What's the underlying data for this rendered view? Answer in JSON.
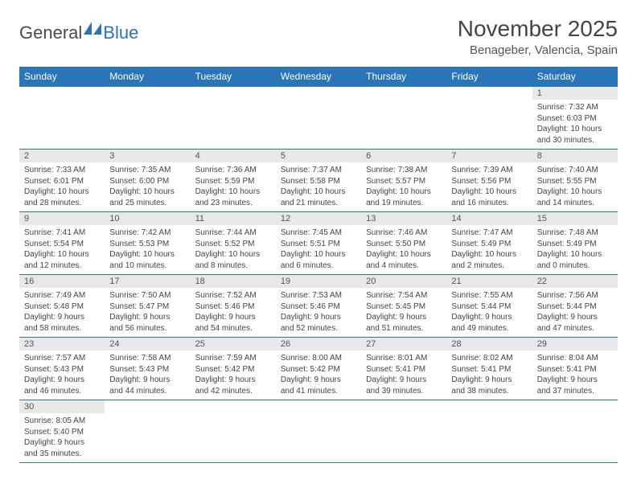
{
  "logo": {
    "text1": "General",
    "text2": "Blue"
  },
  "title": "November 2025",
  "location": "Benageber, Valencia, Spain",
  "colors": {
    "header_bg": "#2a74b8",
    "header_text": "#ffffff",
    "daynum_bg": "#e8e8e8",
    "border": "#2a74b8",
    "body_text": "#444444"
  },
  "weekdays": [
    "Sunday",
    "Monday",
    "Tuesday",
    "Wednesday",
    "Thursday",
    "Friday",
    "Saturday"
  ],
  "weeks": [
    [
      null,
      null,
      null,
      null,
      null,
      null,
      {
        "n": "1",
        "sr": "Sunrise: 7:32 AM",
        "ss": "Sunset: 6:03 PM",
        "dl": "Daylight: 10 hours and 30 minutes."
      }
    ],
    [
      {
        "n": "2",
        "sr": "Sunrise: 7:33 AM",
        "ss": "Sunset: 6:01 PM",
        "dl": "Daylight: 10 hours and 28 minutes."
      },
      {
        "n": "3",
        "sr": "Sunrise: 7:35 AM",
        "ss": "Sunset: 6:00 PM",
        "dl": "Daylight: 10 hours and 25 minutes."
      },
      {
        "n": "4",
        "sr": "Sunrise: 7:36 AM",
        "ss": "Sunset: 5:59 PM",
        "dl": "Daylight: 10 hours and 23 minutes."
      },
      {
        "n": "5",
        "sr": "Sunrise: 7:37 AM",
        "ss": "Sunset: 5:58 PM",
        "dl": "Daylight: 10 hours and 21 minutes."
      },
      {
        "n": "6",
        "sr": "Sunrise: 7:38 AM",
        "ss": "Sunset: 5:57 PM",
        "dl": "Daylight: 10 hours and 19 minutes."
      },
      {
        "n": "7",
        "sr": "Sunrise: 7:39 AM",
        "ss": "Sunset: 5:56 PM",
        "dl": "Daylight: 10 hours and 16 minutes."
      },
      {
        "n": "8",
        "sr": "Sunrise: 7:40 AM",
        "ss": "Sunset: 5:55 PM",
        "dl": "Daylight: 10 hours and 14 minutes."
      }
    ],
    [
      {
        "n": "9",
        "sr": "Sunrise: 7:41 AM",
        "ss": "Sunset: 5:54 PM",
        "dl": "Daylight: 10 hours and 12 minutes."
      },
      {
        "n": "10",
        "sr": "Sunrise: 7:42 AM",
        "ss": "Sunset: 5:53 PM",
        "dl": "Daylight: 10 hours and 10 minutes."
      },
      {
        "n": "11",
        "sr": "Sunrise: 7:44 AM",
        "ss": "Sunset: 5:52 PM",
        "dl": "Daylight: 10 hours and 8 minutes."
      },
      {
        "n": "12",
        "sr": "Sunrise: 7:45 AM",
        "ss": "Sunset: 5:51 PM",
        "dl": "Daylight: 10 hours and 6 minutes."
      },
      {
        "n": "13",
        "sr": "Sunrise: 7:46 AM",
        "ss": "Sunset: 5:50 PM",
        "dl": "Daylight: 10 hours and 4 minutes."
      },
      {
        "n": "14",
        "sr": "Sunrise: 7:47 AM",
        "ss": "Sunset: 5:49 PM",
        "dl": "Daylight: 10 hours and 2 minutes."
      },
      {
        "n": "15",
        "sr": "Sunrise: 7:48 AM",
        "ss": "Sunset: 5:49 PM",
        "dl": "Daylight: 10 hours and 0 minutes."
      }
    ],
    [
      {
        "n": "16",
        "sr": "Sunrise: 7:49 AM",
        "ss": "Sunset: 5:48 PM",
        "dl": "Daylight: 9 hours and 58 minutes."
      },
      {
        "n": "17",
        "sr": "Sunrise: 7:50 AM",
        "ss": "Sunset: 5:47 PM",
        "dl": "Daylight: 9 hours and 56 minutes."
      },
      {
        "n": "18",
        "sr": "Sunrise: 7:52 AM",
        "ss": "Sunset: 5:46 PM",
        "dl": "Daylight: 9 hours and 54 minutes."
      },
      {
        "n": "19",
        "sr": "Sunrise: 7:53 AM",
        "ss": "Sunset: 5:46 PM",
        "dl": "Daylight: 9 hours and 52 minutes."
      },
      {
        "n": "20",
        "sr": "Sunrise: 7:54 AM",
        "ss": "Sunset: 5:45 PM",
        "dl": "Daylight: 9 hours and 51 minutes."
      },
      {
        "n": "21",
        "sr": "Sunrise: 7:55 AM",
        "ss": "Sunset: 5:44 PM",
        "dl": "Daylight: 9 hours and 49 minutes."
      },
      {
        "n": "22",
        "sr": "Sunrise: 7:56 AM",
        "ss": "Sunset: 5:44 PM",
        "dl": "Daylight: 9 hours and 47 minutes."
      }
    ],
    [
      {
        "n": "23",
        "sr": "Sunrise: 7:57 AM",
        "ss": "Sunset: 5:43 PM",
        "dl": "Daylight: 9 hours and 46 minutes."
      },
      {
        "n": "24",
        "sr": "Sunrise: 7:58 AM",
        "ss": "Sunset: 5:43 PM",
        "dl": "Daylight: 9 hours and 44 minutes."
      },
      {
        "n": "25",
        "sr": "Sunrise: 7:59 AM",
        "ss": "Sunset: 5:42 PM",
        "dl": "Daylight: 9 hours and 42 minutes."
      },
      {
        "n": "26",
        "sr": "Sunrise: 8:00 AM",
        "ss": "Sunset: 5:42 PM",
        "dl": "Daylight: 9 hours and 41 minutes."
      },
      {
        "n": "27",
        "sr": "Sunrise: 8:01 AM",
        "ss": "Sunset: 5:41 PM",
        "dl": "Daylight: 9 hours and 39 minutes."
      },
      {
        "n": "28",
        "sr": "Sunrise: 8:02 AM",
        "ss": "Sunset: 5:41 PM",
        "dl": "Daylight: 9 hours and 38 minutes."
      },
      {
        "n": "29",
        "sr": "Sunrise: 8:04 AM",
        "ss": "Sunset: 5:41 PM",
        "dl": "Daylight: 9 hours and 37 minutes."
      }
    ],
    [
      {
        "n": "30",
        "sr": "Sunrise: 8:05 AM",
        "ss": "Sunset: 5:40 PM",
        "dl": "Daylight: 9 hours and 35 minutes."
      },
      null,
      null,
      null,
      null,
      null,
      null
    ]
  ]
}
